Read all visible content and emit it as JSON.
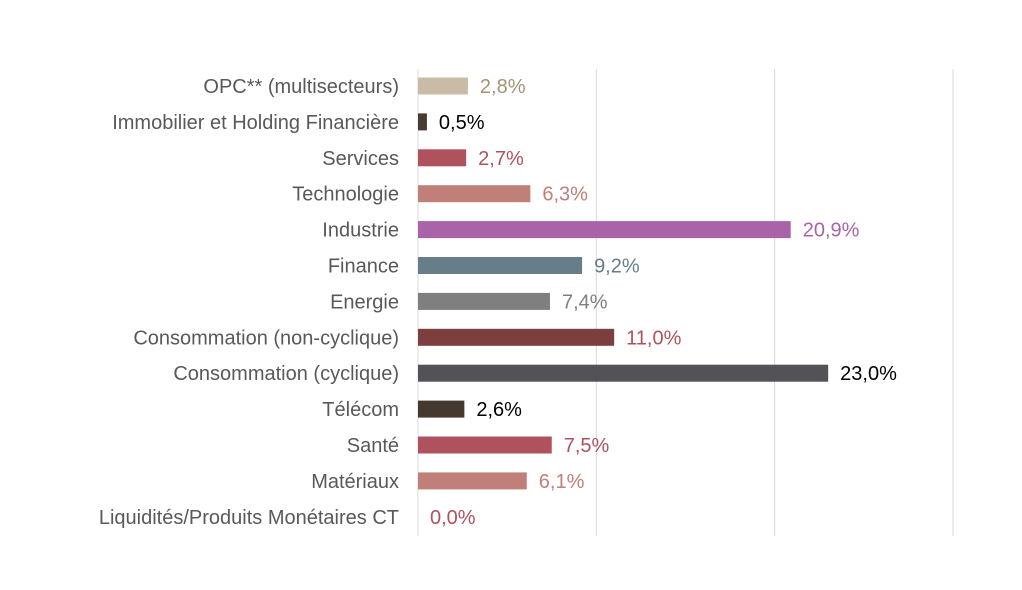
{
  "chart_data": {
    "type": "bar",
    "orientation": "horizontal",
    "title": "",
    "xlabel": "",
    "ylabel": "",
    "xlim": [
      0,
      30
    ],
    "grid": true,
    "legend": "none",
    "categories": [
      "OPC** (multisecteurs)",
      "Immobilier et Holding Financière",
      "Services",
      "Technologie",
      "Industrie",
      "Finance",
      "Energie",
      "Consommation (non-cyclique)",
      "Consommation (cyclique)",
      "Télécom",
      "Santé",
      "Matériaux",
      "Liquidités/Produits Monétaires CT"
    ],
    "values": [
      2.8,
      0.5,
      2.7,
      6.3,
      20.9,
      9.2,
      7.4,
      11.0,
      23.0,
      2.6,
      7.5,
      6.1,
      0.0
    ],
    "value_labels": [
      "2,8%",
      "0,5%",
      "2,7%",
      "6,3%",
      "20,9%",
      "9,2%",
      "7,4%",
      "11,0%",
      "23,0%",
      "2,6%",
      "7,5%",
      "6,1%",
      "0,0%"
    ],
    "bar_colors": [
      "#c9bba6",
      "#4a3b32",
      "#b0525e",
      "#c07f78",
      "#a963a8",
      "#677d88",
      "#7f7f7f",
      "#7d3f3e",
      "#525257",
      "#45392f",
      "#b0525e",
      "#c07f78",
      "#b0525e"
    ],
    "label_colors": [
      "#a39378",
      "#000000",
      "#b0525e",
      "#c07f78",
      "#a963a8",
      "#677d88",
      "#7f7f7f",
      "#b0525e",
      "#000000",
      "#000000",
      "#b0525e",
      "#c07f78",
      "#b0525e"
    ],
    "gridline_color": "#d9d9d9",
    "category_label_color": "#595959"
  }
}
